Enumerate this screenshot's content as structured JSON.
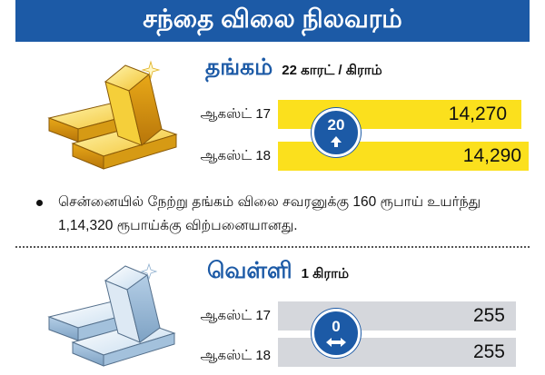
{
  "banner": {
    "title": "சந்தை விலை நிலவரம்"
  },
  "gold": {
    "name": "தங்கம்",
    "unit": "22 காரட் / கிராம்",
    "rows": [
      {
        "date": "ஆகஸ்ட் 17",
        "value": "14,270"
      },
      {
        "date": "ஆகஸ்ட் 18",
        "value": "14,290"
      }
    ],
    "change": "20",
    "change_icon": "arrow-up-icon",
    "color": "#fbe01d"
  },
  "note": "சென்னையில் நேற்று தங்கம் விலை சவரனுக்கு 160 ரூபாய் உயர்ந்து 1,14,320 ரூபாய்க்கு விற்பனையானது.",
  "silver": {
    "name": "வெள்ளி",
    "unit": "1 கிராம்",
    "rows": [
      {
        "date": "ஆகஸ்ட் 17",
        "value": "255"
      },
      {
        "date": "ஆகஸ்ட் 18",
        "value": "255"
      }
    ],
    "change": "0",
    "change_icon": "arrow-left-right-icon",
    "color": "#d5d7dc"
  },
  "accent_color": "#1c5aa6"
}
